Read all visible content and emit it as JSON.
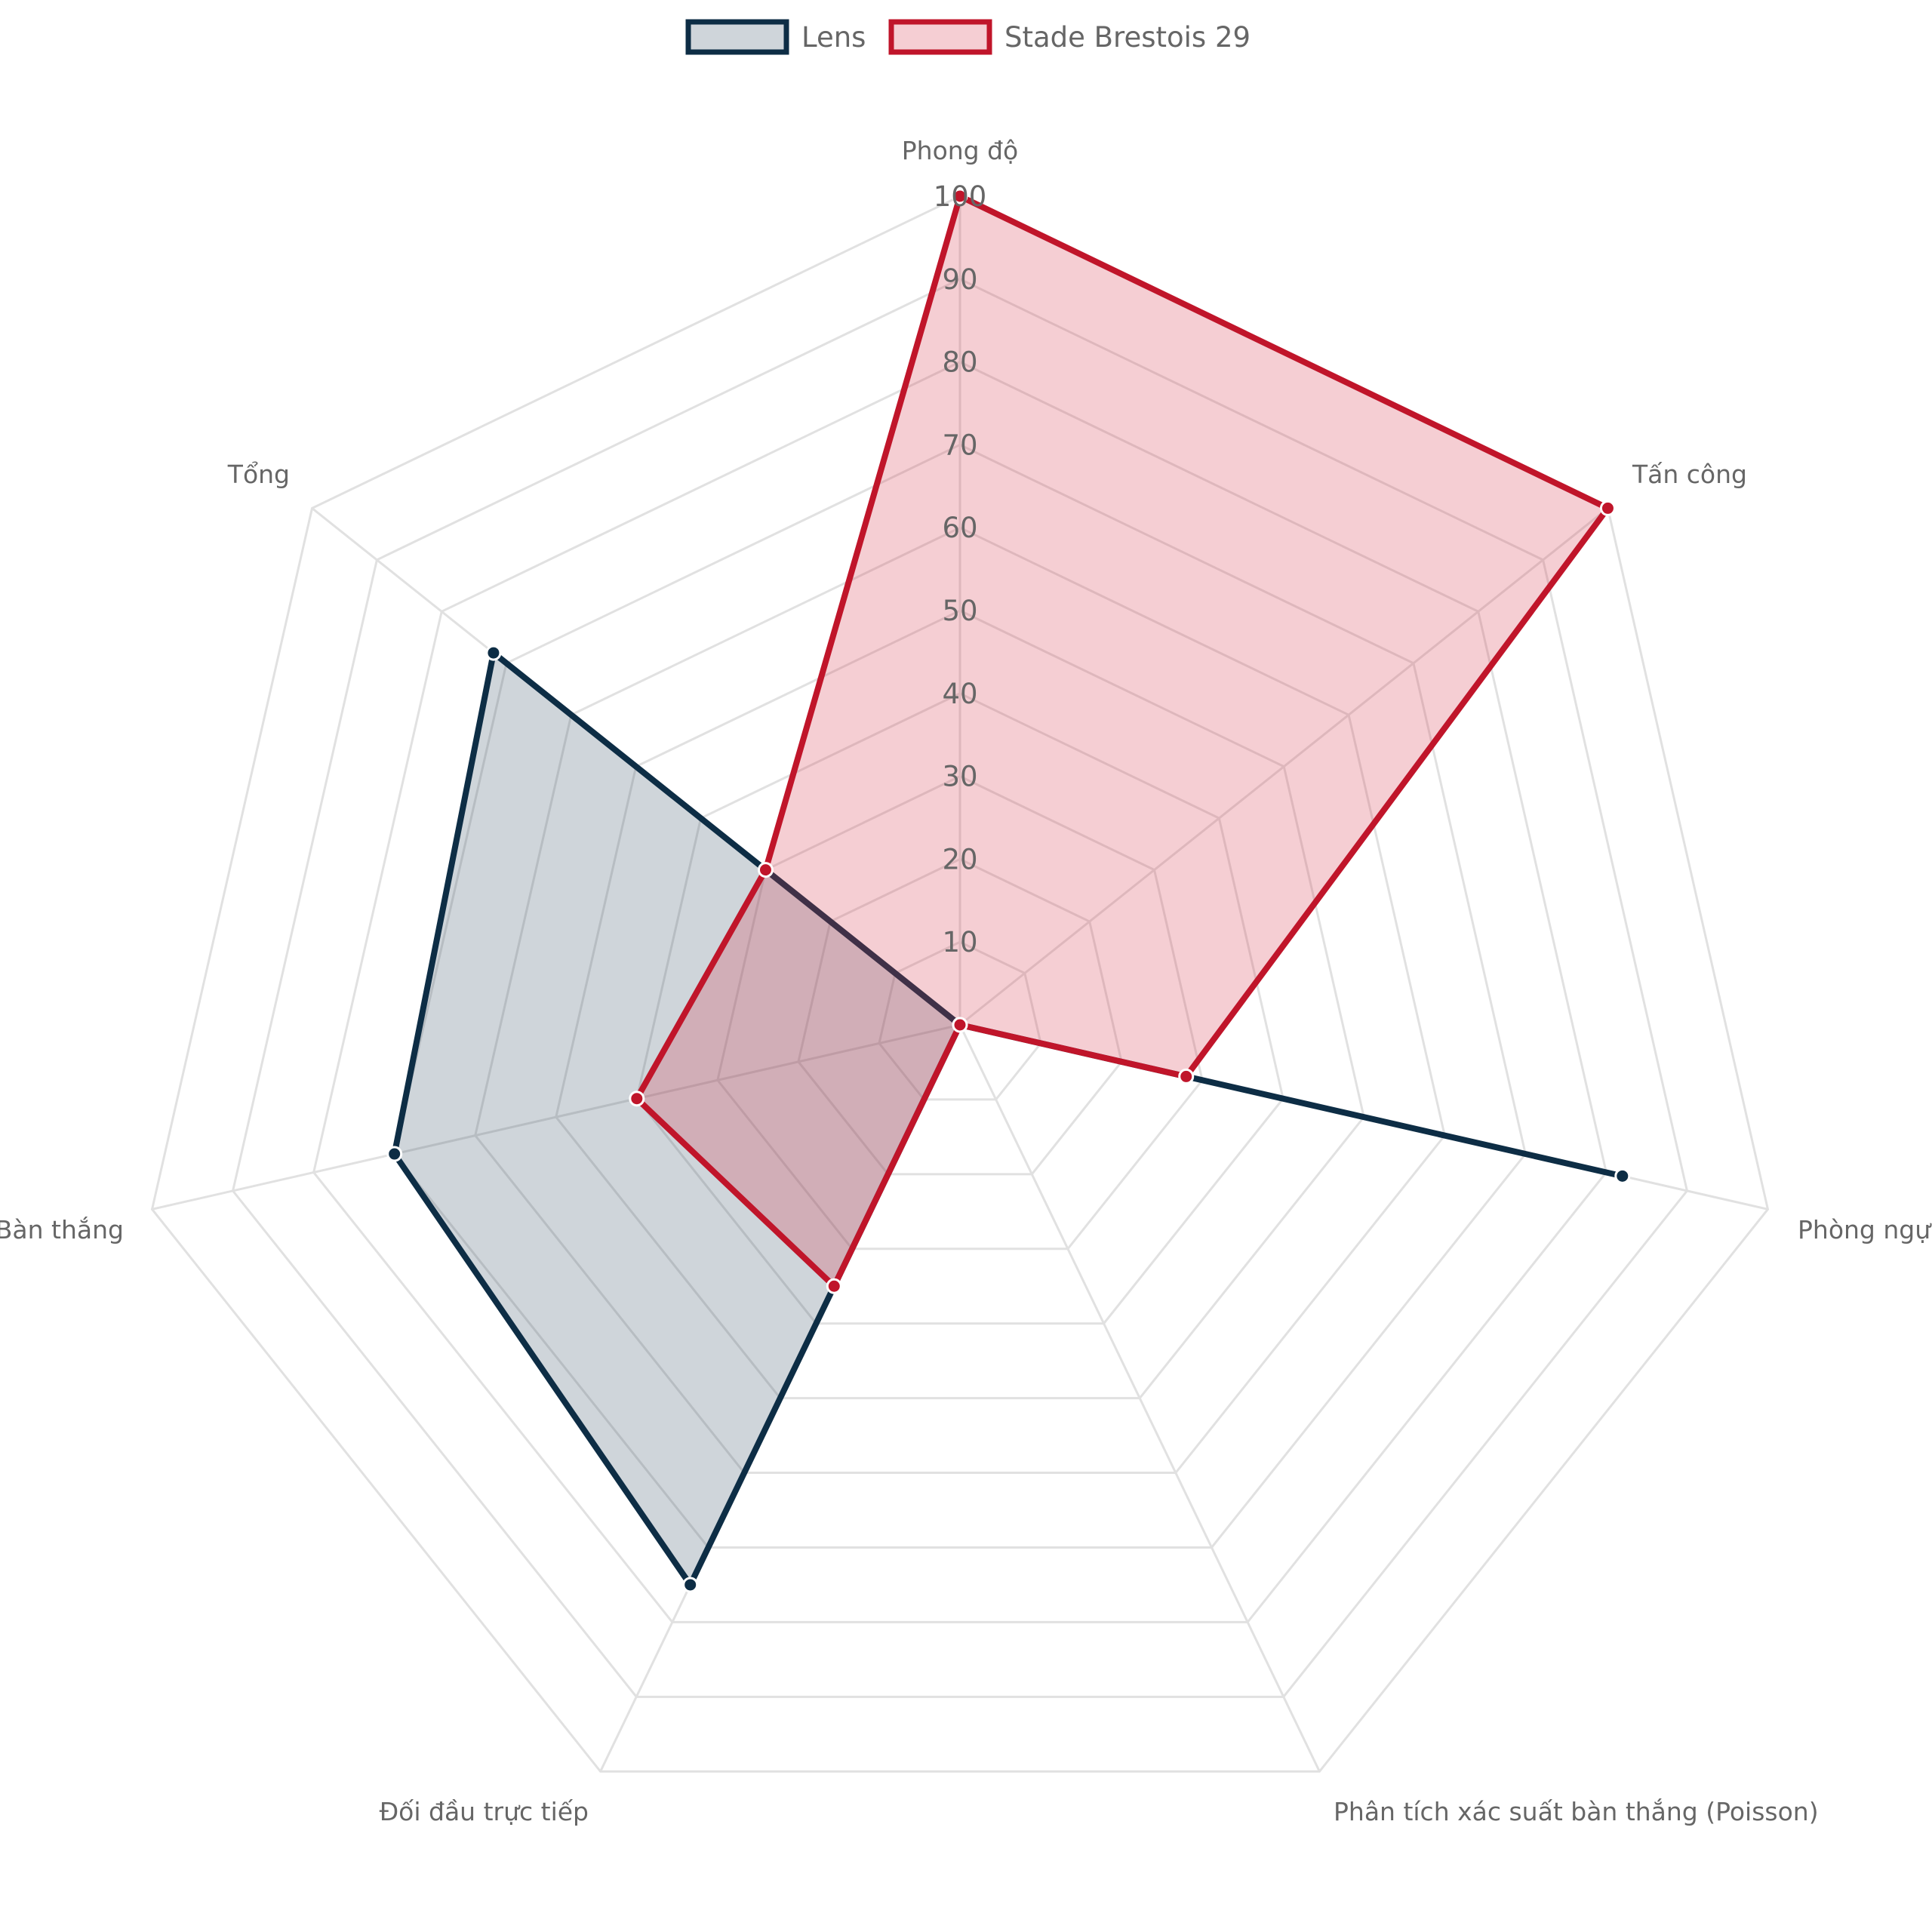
{
  "chart_data": {
    "type": "radar",
    "axes": [
      "Phong độ",
      "Tấn công",
      "Phòng ngự",
      "Phân tích xác suất bàn thắng (Poisson)",
      "Đối đầu trực tiếp",
      "Bàn thắng",
      "Tổng"
    ],
    "r_range": [
      0,
      100
    ],
    "ticks": [
      "10",
      "20",
      "30",
      "40",
      "50",
      "60",
      "70",
      "80",
      "90",
      "100"
    ],
    "grid": true,
    "legend_position": "top",
    "series": [
      {
        "name": "Lens",
        "values": [
          0,
          0,
          82,
          0,
          75,
          70,
          72
        ],
        "color": "#0d2d45",
        "fill": "rgba(13,45,69,0.2)"
      },
      {
        "name": "Stade Brestois 29",
        "values": [
          100,
          100,
          28,
          0,
          35,
          40,
          30
        ],
        "color": "#c0152a",
        "fill": "rgba(214,60,80,0.25)"
      }
    ]
  }
}
